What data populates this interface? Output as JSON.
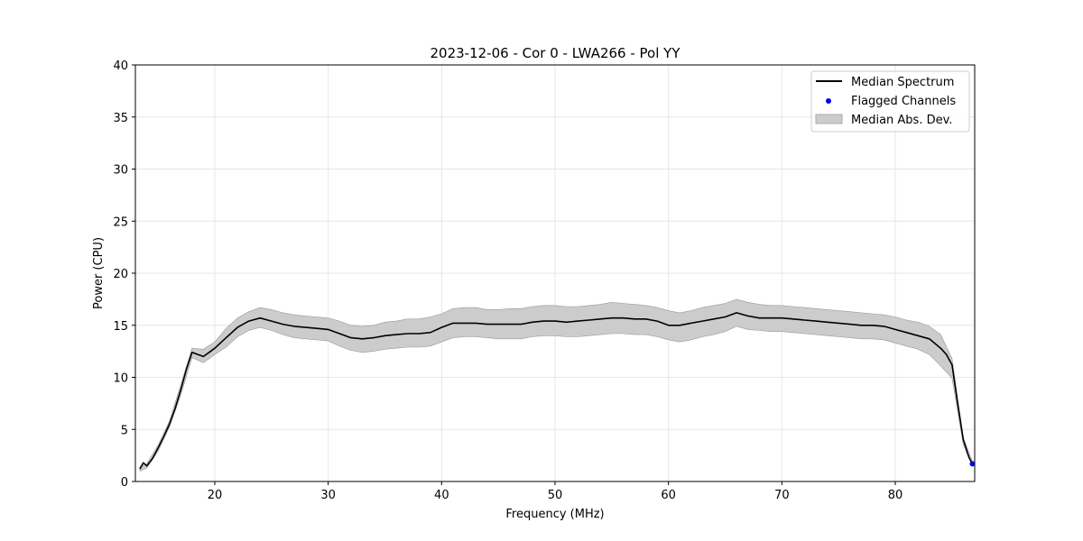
{
  "chart_data": {
    "type": "line",
    "title": "2023-12-06 - Cor 0 - LWA266 - Pol YY",
    "xlabel": "Frequency (MHz)",
    "ylabel": "Power (CPU)",
    "xlim": [
      13,
      87
    ],
    "ylim": [
      0,
      40
    ],
    "xticks": [
      20,
      30,
      40,
      50,
      60,
      70,
      80
    ],
    "yticks": [
      0,
      5,
      10,
      15,
      20,
      25,
      30,
      35,
      40
    ],
    "grid": true,
    "legend_position": "top-right",
    "colors": {
      "median": "#000000",
      "flagged": "#0000ff",
      "band_fill": "#cccccc",
      "band_edge": "#999999",
      "grid": "#e6e6e6"
    },
    "series": [
      {
        "name": "Median Spectrum",
        "kind": "line",
        "x": [
          13.4,
          13.7,
          14.0,
          14.5,
          15.0,
          15.5,
          16.0,
          16.5,
          17.0,
          17.5,
          18.0,
          18.5,
          19.0,
          19.5,
          20.0,
          21.0,
          22.0,
          23.0,
          24.0,
          25.0,
          26.0,
          27.0,
          28.0,
          29.0,
          30.0,
          31.0,
          32.0,
          33.0,
          34.0,
          35.0,
          36.0,
          37.0,
          38.0,
          39.0,
          40.0,
          41.0,
          42.0,
          43.0,
          44.0,
          45.0,
          46.0,
          47.0,
          48.0,
          49.0,
          50.0,
          51.0,
          52.0,
          53.0,
          54.0,
          55.0,
          56.0,
          57.0,
          58.0,
          59.0,
          60.0,
          61.0,
          62.0,
          63.0,
          64.0,
          65.0,
          66.0,
          67.0,
          68.0,
          69.0,
          70.0,
          71.0,
          72.0,
          73.0,
          74.0,
          75.0,
          76.0,
          77.0,
          78.0,
          79.0,
          80.0,
          81.0,
          82.0,
          83.0,
          84.0,
          84.5,
          85.0,
          85.5,
          86.0,
          86.5,
          86.8
        ],
        "y": [
          1.2,
          1.8,
          1.5,
          2.2,
          3.2,
          4.3,
          5.5,
          7.0,
          8.8,
          10.8,
          12.4,
          12.2,
          12.0,
          12.4,
          12.8,
          13.8,
          14.8,
          15.4,
          15.7,
          15.4,
          15.1,
          14.9,
          14.8,
          14.7,
          14.6,
          14.2,
          13.8,
          13.7,
          13.8,
          14.0,
          14.1,
          14.2,
          14.2,
          14.3,
          14.8,
          15.2,
          15.2,
          15.2,
          15.1,
          15.1,
          15.1,
          15.1,
          15.3,
          15.4,
          15.4,
          15.3,
          15.4,
          15.5,
          15.6,
          15.7,
          15.7,
          15.6,
          15.6,
          15.4,
          15.0,
          15.0,
          15.2,
          15.4,
          15.6,
          15.8,
          16.2,
          15.9,
          15.7,
          15.7,
          15.7,
          15.6,
          15.5,
          15.4,
          15.3,
          15.2,
          15.1,
          15.0,
          15.0,
          14.9,
          14.6,
          14.3,
          14.0,
          13.7,
          12.8,
          12.2,
          11.2,
          7.5,
          4.0,
          2.3,
          1.7
        ]
      },
      {
        "name": "Flagged Channels",
        "kind": "scatter",
        "x": [
          86.8
        ],
        "y": [
          1.7
        ]
      },
      {
        "name": "Median Abs. Dev.",
        "kind": "band",
        "x": [
          13.4,
          14.0,
          15.0,
          16.0,
          17.0,
          18.0,
          19.0,
          20.0,
          21.0,
          22.0,
          23.0,
          24.0,
          25.0,
          26.0,
          27.0,
          28.0,
          29.0,
          30.0,
          31.0,
          32.0,
          33.0,
          34.0,
          35.0,
          36.0,
          37.0,
          38.0,
          39.0,
          40.0,
          41.0,
          42.0,
          43.0,
          44.0,
          45.0,
          46.0,
          47.0,
          48.0,
          49.0,
          50.0,
          51.0,
          52.0,
          53.0,
          54.0,
          55.0,
          56.0,
          57.0,
          58.0,
          59.0,
          60.0,
          61.0,
          62.0,
          63.0,
          64.0,
          65.0,
          66.0,
          67.0,
          68.0,
          69.0,
          70.0,
          71.0,
          72.0,
          73.0,
          74.0,
          75.0,
          76.0,
          77.0,
          78.0,
          79.0,
          80.0,
          81.0,
          82.0,
          83.0,
          84.0,
          85.0,
          86.0,
          86.8
        ],
        "upper": [
          1.4,
          1.7,
          3.5,
          5.8,
          9.3,
          12.8,
          12.7,
          13.4,
          14.7,
          15.7,
          16.3,
          16.7,
          16.5,
          16.2,
          16.0,
          15.9,
          15.8,
          15.7,
          15.4,
          15.0,
          14.9,
          15.0,
          15.3,
          15.4,
          15.6,
          15.6,
          15.8,
          16.1,
          16.6,
          16.7,
          16.7,
          16.5,
          16.5,
          16.6,
          16.6,
          16.8,
          16.9,
          16.9,
          16.8,
          16.8,
          16.9,
          17.0,
          17.2,
          17.1,
          17.0,
          16.9,
          16.7,
          16.4,
          16.2,
          16.4,
          16.7,
          16.9,
          17.1,
          17.5,
          17.2,
          17.0,
          16.9,
          16.9,
          16.8,
          16.7,
          16.6,
          16.5,
          16.4,
          16.3,
          16.2,
          16.1,
          16.0,
          15.8,
          15.5,
          15.3,
          14.9,
          14.1,
          11.8,
          4.2,
          1.9
        ],
        "lower": [
          1.0,
          1.3,
          2.9,
          5.2,
          8.3,
          11.9,
          11.4,
          12.2,
          12.9,
          13.9,
          14.5,
          14.8,
          14.5,
          14.1,
          13.8,
          13.7,
          13.6,
          13.5,
          13.0,
          12.6,
          12.4,
          12.5,
          12.7,
          12.8,
          12.9,
          12.9,
          13.0,
          13.4,
          13.8,
          13.9,
          13.9,
          13.8,
          13.7,
          13.7,
          13.7,
          13.9,
          14.0,
          14.0,
          13.9,
          13.9,
          14.0,
          14.1,
          14.2,
          14.2,
          14.1,
          14.1,
          13.9,
          13.6,
          13.4,
          13.6,
          13.9,
          14.1,
          14.4,
          14.9,
          14.6,
          14.5,
          14.4,
          14.4,
          14.3,
          14.2,
          14.1,
          14.0,
          13.9,
          13.8,
          13.7,
          13.7,
          13.6,
          13.3,
          13.0,
          12.7,
          12.2,
          11.1,
          9.9,
          3.5,
          1.5
        ]
      }
    ]
  }
}
